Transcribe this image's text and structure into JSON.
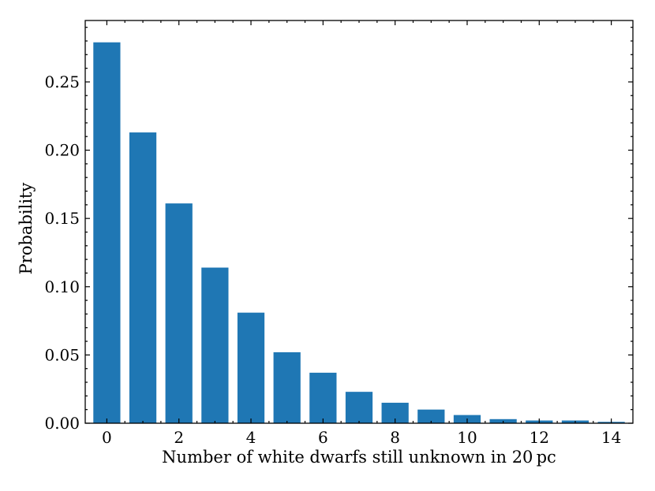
{
  "chart_data": {
    "type": "bar",
    "title": "",
    "xlabel": "Number of white dwarfs still unknown in 20 pc",
    "ylabel": "Probability",
    "x": [
      0,
      1,
      2,
      3,
      4,
      5,
      6,
      7,
      8,
      9,
      10,
      11,
      12,
      13,
      14
    ],
    "values": [
      0.279,
      0.213,
      0.161,
      0.114,
      0.081,
      0.052,
      0.037,
      0.023,
      0.015,
      0.01,
      0.006,
      0.003,
      0.002,
      0.002,
      0.001
    ],
    "xlim": [
      -0.6,
      14.6
    ],
    "ylim": [
      0,
      0.295
    ],
    "xticks": [
      0,
      2,
      4,
      6,
      8,
      10,
      12,
      14
    ],
    "xtick_labels": [
      "0",
      "2",
      "4",
      "6",
      "8",
      "10",
      "12",
      "14"
    ],
    "yticks": [
      0.0,
      0.05,
      0.1,
      0.15,
      0.2,
      0.25
    ],
    "ytick_labels": [
      "0.00",
      "0.05",
      "0.10",
      "0.15",
      "0.20",
      "0.25"
    ],
    "bar_color": "#1f77b4",
    "grid": false,
    "legend": "none"
  }
}
